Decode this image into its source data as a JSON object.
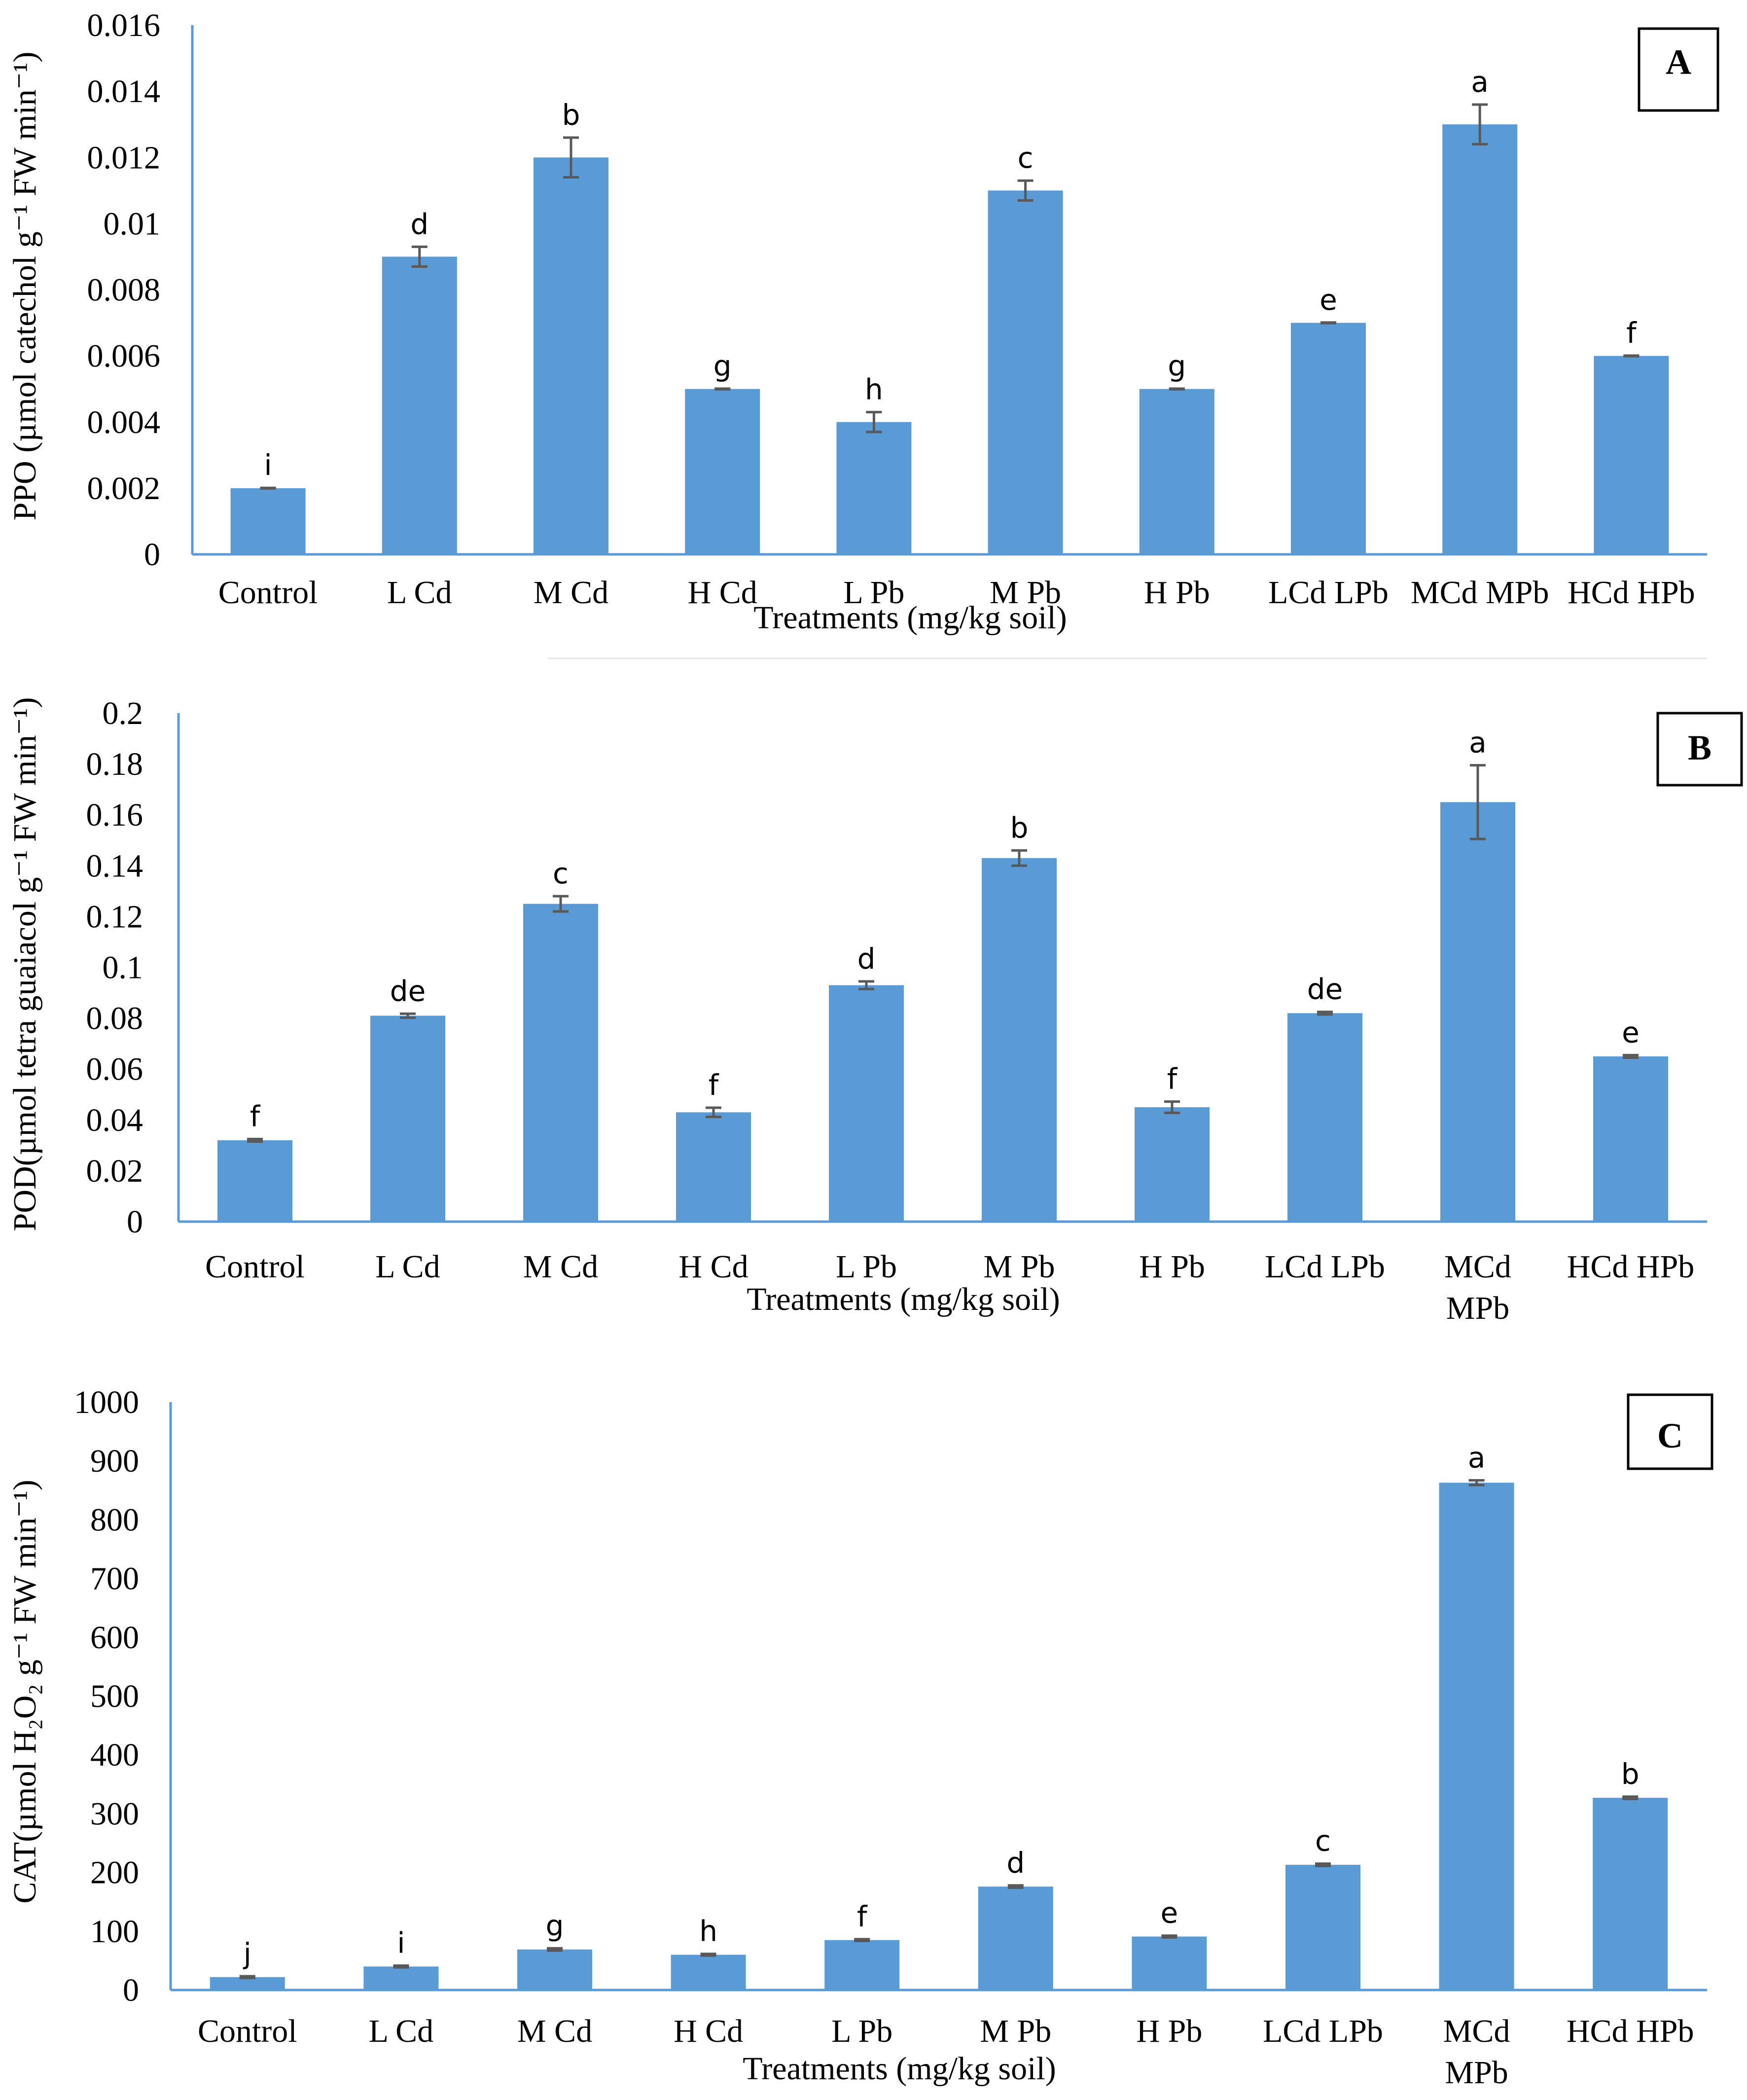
{
  "colors": {
    "bar": "#5b9bd5",
    "axis": "#5b9bd5",
    "error": "#595959"
  },
  "chart_data": [
    {
      "type": "bar",
      "panel_label": "A",
      "ylabel": "PPO (µmol catechol g⁻¹ FW min⁻¹)",
      "xlabel": "Treatments (mg/kg soil)",
      "ylim": [
        0,
        0.016
      ],
      "yticks": [
        "0",
        "0.002",
        "0.004",
        "0.006",
        "0.008",
        "0.01",
        "0.012",
        "0.014",
        "0.016"
      ],
      "categories": [
        "Control",
        "L Cd",
        "M Cd",
        "H Cd",
        "L Pb",
        "M Pb",
        "H Pb",
        "LCd LPb",
        "MCd MPb",
        "HCd HPb"
      ],
      "values": [
        0.002,
        0.009,
        0.012,
        0.005,
        0.004,
        0.011,
        0.005,
        0.007,
        0.013,
        0.006
      ],
      "errors": [
        1e-05,
        0.0003,
        0.0006,
        1e-05,
        0.0003,
        0.0003,
        1e-05,
        1e-05,
        0.0006,
        1e-05
      ],
      "letters": [
        "i",
        "d",
        "b",
        "g",
        "h",
        "c",
        "g",
        "e",
        "a",
        "f"
      ]
    },
    {
      "type": "bar",
      "panel_label": "B",
      "ylabel": "POD(µmol tetra guaiacol g⁻¹ FW min⁻¹)",
      "xlabel": "Treatments (mg/kg soil)",
      "ylim": [
        0,
        0.2
      ],
      "yticks": [
        "0",
        "0.02",
        "0.04",
        "0.06",
        "0.08",
        "0.1",
        "0.12",
        "0.14",
        "0.16",
        "0.18",
        "0.2"
      ],
      "categories": [
        "Control",
        "L Cd",
        "M Cd",
        "H Cd",
        "L Pb",
        "M Pb",
        "H Pb",
        "LCd LPb",
        "MCd MPb",
        "HCd HPb"
      ],
      "values": [
        0.032,
        0.081,
        0.125,
        0.043,
        0.093,
        0.143,
        0.045,
        0.082,
        0.165,
        0.065
      ],
      "errors": [
        0.0005,
        0.0008,
        0.003,
        0.0018,
        0.0015,
        0.003,
        0.0022,
        0.0005,
        0.0145,
        0.0005
      ],
      "letters": [
        "f",
        "de",
        "c",
        "f",
        "d",
        "b",
        "f",
        "de",
        "a",
        "e"
      ]
    },
    {
      "type": "bar",
      "panel_label": "C",
      "ylabel": "CAT(µmol  H₂O₂ g⁻¹ FW min⁻¹)",
      "xlabel": "Treatments (mg/kg soil)",
      "ylim": [
        0,
        1000
      ],
      "yticks": [
        "0",
        "100",
        "200",
        "300",
        "400",
        "500",
        "600",
        "700",
        "800",
        "900",
        "1000"
      ],
      "categories": [
        "Control",
        "L Cd",
        "M Cd",
        "H Cd",
        "L Pb",
        "M Pb",
        "H Pb",
        "LCd LPb",
        "MCd MPb",
        "HCd HPb"
      ],
      "values": [
        22,
        40,
        69,
        60,
        85,
        176,
        91,
        213,
        863,
        327
      ],
      "errors": [
        1.5,
        1.5,
        2,
        1.5,
        1.5,
        2,
        1.5,
        2,
        4,
        2
      ],
      "letters": [
        "j",
        "i",
        "g",
        "h",
        "f",
        "d",
        "e",
        "c",
        "a",
        "b"
      ]
    }
  ]
}
